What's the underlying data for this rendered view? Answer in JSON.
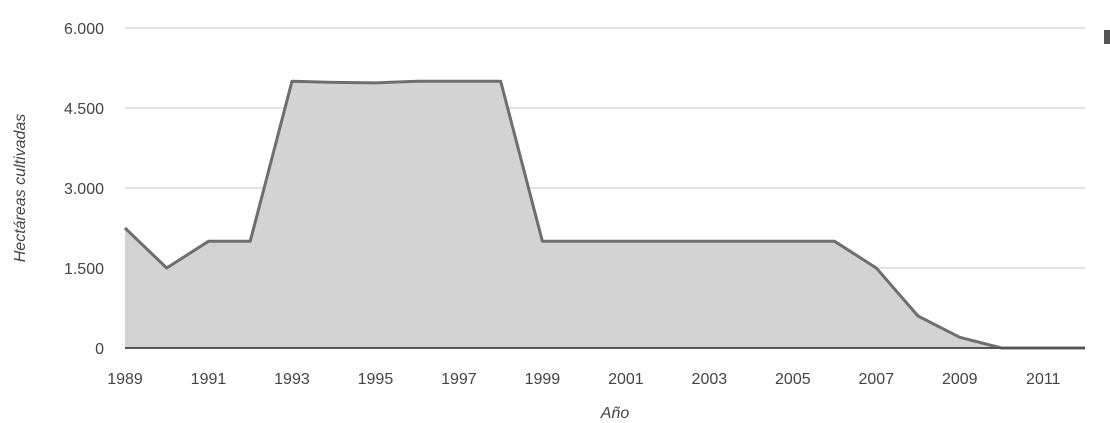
{
  "chart_data": {
    "type": "area",
    "title": "",
    "xlabel": "Año",
    "ylabel": "Hectáreas cultivadas",
    "grid": true,
    "ylim": [
      0,
      6000
    ],
    "xlim": [
      1989,
      2012
    ],
    "y_ticks": [
      "0",
      "1.500",
      "3.000",
      "4.500",
      "6.000"
    ],
    "y_tick_values": [
      0,
      1500,
      3000,
      4500,
      6000
    ],
    "x_ticks": [
      "1989",
      "1991",
      "1993",
      "1995",
      "1997",
      "1999",
      "2001",
      "2003",
      "2005",
      "2007",
      "2009",
      "2011"
    ],
    "x_tick_values": [
      1989,
      1991,
      1993,
      1995,
      1997,
      1999,
      2001,
      2003,
      2005,
      2007,
      2009,
      2011
    ],
    "series": [
      {
        "x": [
          1989,
          1990,
          1991,
          1992,
          1993,
          1994,
          1995,
          1996,
          1997,
          1998,
          1999,
          2000,
          2001,
          2002,
          2003,
          2004,
          2005,
          2006,
          2007,
          2008,
          2009,
          2010,
          2011,
          2012
        ],
        "values": [
          2250,
          1500,
          2000,
          2000,
          5000,
          4980,
          4970,
          5000,
          5000,
          5000,
          2000,
          2000,
          2000,
          2000,
          2000,
          2000,
          2000,
          2000,
          1500,
          600,
          200,
          0,
          0,
          0
        ]
      }
    ],
    "colors": {
      "fill": "#d3d3d3",
      "line": "#6e6e6e",
      "grid": "#d9d9d9",
      "baseline": "#555555",
      "text": "#444444"
    }
  }
}
